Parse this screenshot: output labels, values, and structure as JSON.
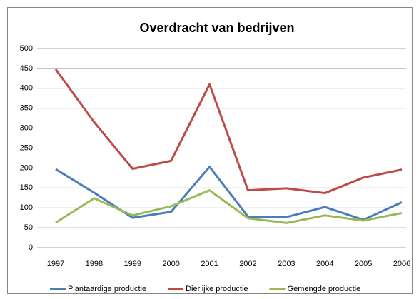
{
  "chart_data": {
    "type": "line",
    "title": "Overdracht van bedrijven",
    "categories": [
      "1997",
      "1998",
      "1999",
      "2000",
      "2001",
      "2002",
      "2003",
      "2004",
      "2005",
      "2006"
    ],
    "series": [
      {
        "name": "Plantaardige productie",
        "color": "#4a7ebb",
        "values": [
          197,
          138,
          75,
          90,
          203,
          78,
          77,
          102,
          70,
          114
        ]
      },
      {
        "name": "Dierlijke productie",
        "color": "#be4b48",
        "values": [
          448,
          315,
          198,
          218,
          410,
          144,
          149,
          137,
          176,
          196
        ]
      },
      {
        "name": "Gemengde productie",
        "color": "#98b954",
        "values": [
          63,
          124,
          81,
          104,
          144,
          74,
          62,
          81,
          68,
          87
        ]
      }
    ],
    "ylim": [
      0,
      500
    ],
    "yticks": [
      0,
      50,
      100,
      150,
      200,
      250,
      300,
      350,
      400,
      450,
      500
    ],
    "grid": true,
    "legend": "bottom"
  }
}
